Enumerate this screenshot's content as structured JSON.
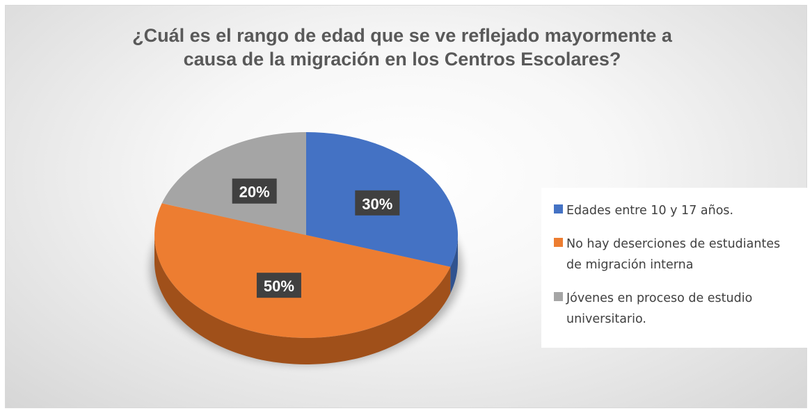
{
  "chart_data": {
    "type": "pie",
    "title": [
      "¿Cuál es el rango de edad que se ve reflejado mayormente a",
      "causa de la migración en los Centros Escolares?"
    ],
    "slices": [
      {
        "label": "Edades entre 10 y 17 años.",
        "legend_lines": "Edades entre 10 y 17 años.",
        "value": 30,
        "data_label": "30%",
        "color": "#4472c4",
        "side_color": "#2f528f"
      },
      {
        "label": "No hay deserciones de estudiantes de migración interna",
        "legend_lines": "No hay deserciones de estudiantes\nde migración interna",
        "value": 50,
        "data_label": "50%",
        "color": "#ed7d31",
        "side_color": "#a0501a"
      },
      {
        "label": "Jóvenes en proceso de estudio universitario.",
        "legend_lines": "Jóvenes en proceso de estudio\nuniversitario.",
        "value": 20,
        "data_label": "20%",
        "color": "#a5a5a5",
        "side_color": "#737373"
      }
    ],
    "legend_position": "right",
    "data_label_style": "dark boxes with white bold text"
  }
}
